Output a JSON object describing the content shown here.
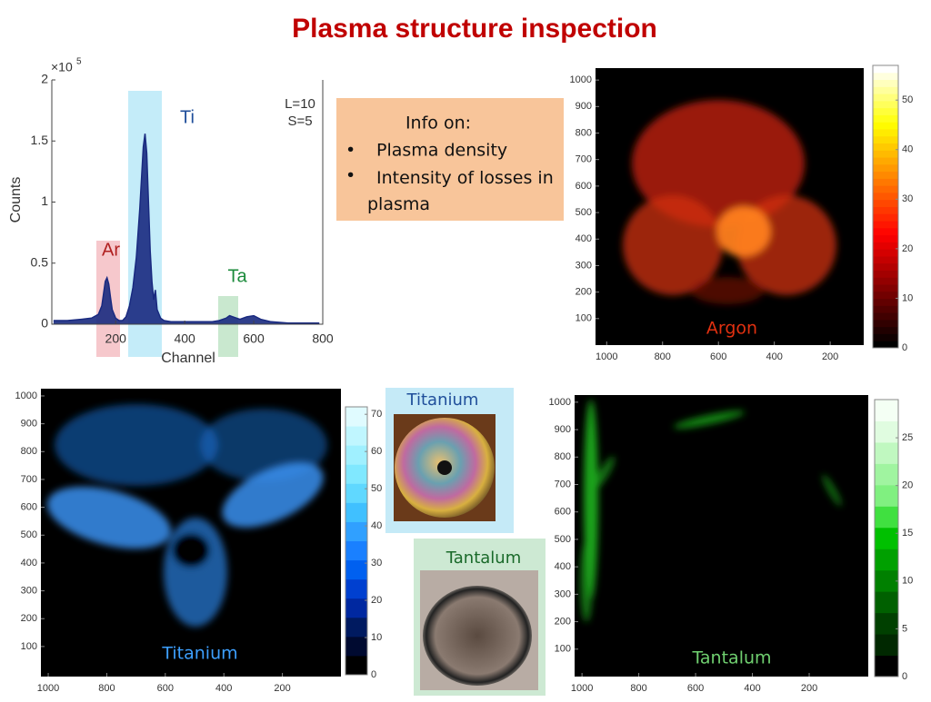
{
  "title": "Plasma structure inspection",
  "spectrum": {
    "type": "area",
    "x_label": "Channel",
    "y_label": "Counts",
    "y_scale_label": "×10",
    "y_scale_power": "5",
    "x": [
      20,
      60,
      100,
      130,
      150,
      160,
      165,
      170,
      175,
      180,
      185,
      190,
      200,
      210,
      220,
      230,
      240,
      250,
      260,
      270,
      275,
      280,
      285,
      290,
      295,
      300,
      305,
      310,
      315,
      320,
      330,
      340,
      360,
      400,
      450,
      480,
      500,
      520,
      530,
      540,
      560,
      580,
      600,
      620,
      650,
      700,
      750,
      790
    ],
    "values": [
      0.03,
      0.03,
      0.04,
      0.05,
      0.08,
      0.15,
      0.25,
      0.35,
      0.38,
      0.33,
      0.22,
      0.12,
      0.05,
      0.03,
      0.03,
      0.06,
      0.15,
      0.3,
      0.55,
      0.95,
      1.2,
      1.45,
      1.56,
      1.4,
      1.0,
      0.6,
      0.35,
      0.2,
      0.28,
      0.12,
      0.05,
      0.03,
      0.02,
      0.02,
      0.02,
      0.02,
      0.03,
      0.05,
      0.07,
      0.06,
      0.04,
      0.06,
      0.07,
      0.04,
      0.02,
      0.01,
      0.01,
      0.01
    ],
    "color": "#1a2a80",
    "xlim": [
      15,
      800
    ],
    "xticks": [
      200,
      400,
      600,
      800
    ],
    "ylim": [
      0,
      2
    ],
    "yticks": [
      0,
      0.5,
      1,
      1.5,
      2
    ],
    "annotations": [
      "Ti",
      "Ar",
      "Ta",
      "L=10",
      "S=5"
    ]
  },
  "info": {
    "heading": "Info on:",
    "items": [
      "Plasma density",
      "Intensity of losses in plasma"
    ]
  },
  "maps": [
    {
      "type": "heatmap",
      "label": "Argon",
      "xticks": [
        1000,
        800,
        600,
        400,
        200
      ],
      "xlim": [
        1040,
        80
      ],
      "yticks": [
        100,
        200,
        300,
        400,
        500,
        600,
        700,
        800,
        900,
        1000
      ],
      "ylim": [
        0,
        1045
      ],
      "colorbar_ticks": [
        0,
        10,
        20,
        30,
        40,
        50
      ],
      "clim": [
        0,
        57
      ]
    },
    {
      "type": "heatmap",
      "label": "Titanium",
      "xticks": [
        1000,
        800,
        600,
        400,
        200
      ],
      "xlim": [
        1025,
        0
      ],
      "yticks": [
        100,
        200,
        300,
        400,
        500,
        600,
        700,
        800,
        900,
        1000
      ],
      "ylim": [
        -8,
        1026
      ],
      "colorbar_ticks": [
        0,
        10,
        20,
        30,
        40,
        50,
        60,
        70
      ],
      "clim": [
        0,
        72
      ]
    },
    {
      "type": "heatmap",
      "label": "Tantalum",
      "xticks": [
        1000,
        800,
        600,
        400,
        200
      ],
      "xlim": [
        1026,
        -8
      ],
      "yticks": [
        100,
        200,
        300,
        400,
        500,
        600,
        700,
        800,
        900,
        1000
      ],
      "ylim": [
        0,
        1026
      ],
      "colorbar_ticks": [
        0,
        5,
        10,
        15,
        20,
        25
      ],
      "clim": [
        0,
        29
      ]
    }
  ],
  "photos": [
    "Titanium",
    "Tantalum"
  ]
}
